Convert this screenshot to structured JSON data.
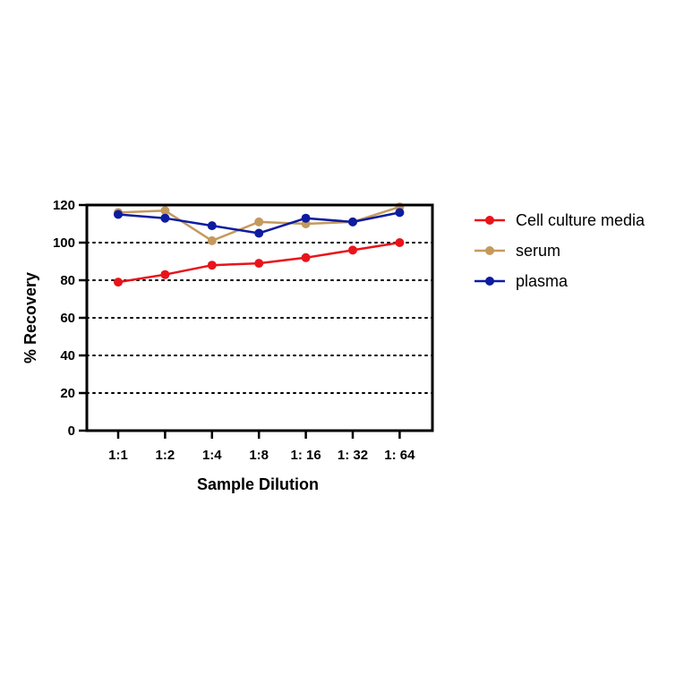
{
  "chart_data": {
    "type": "line",
    "title": "",
    "xlabel": "Sample Dilution",
    "ylabel": "% Recovery",
    "categories": [
      "1:1",
      "1:2",
      "1:4",
      "1:8",
      "1: 16",
      "1: 32",
      "1: 64"
    ],
    "ylim": [
      0,
      120
    ],
    "yticks": [
      0,
      20,
      40,
      60,
      80,
      100,
      120
    ],
    "grid": "horizontal dotted",
    "legend_position": "right",
    "series": [
      {
        "name": "Cell culture media",
        "color": "#e8141b",
        "values": [
          79,
          83,
          88,
          89,
          92,
          96,
          100
        ]
      },
      {
        "name": "serum",
        "color": "#c49a5c",
        "values": [
          116,
          117,
          101,
          111,
          110,
          111,
          119
        ]
      },
      {
        "name": "plasma",
        "color": "#0d1ca0",
        "values": [
          115,
          113,
          109,
          105,
          113,
          111,
          116
        ]
      }
    ]
  }
}
